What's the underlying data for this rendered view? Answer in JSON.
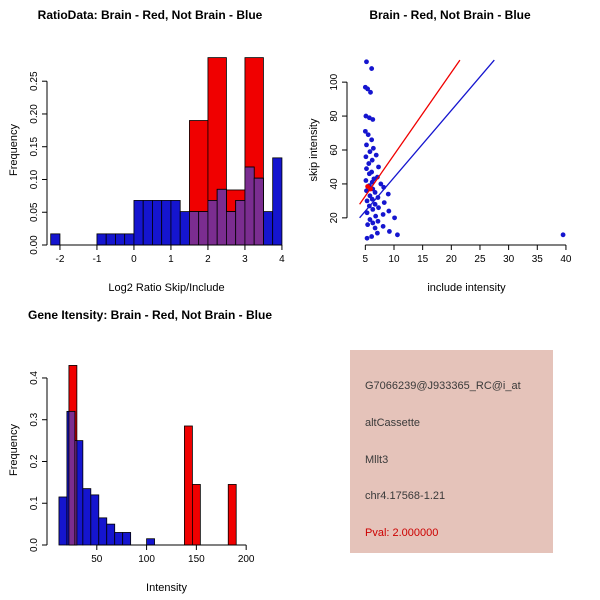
{
  "page": {
    "background": "#ffffff"
  },
  "chart_data": [
    {
      "type": "histogram",
      "title": "RatioData: Brain - Red, Not Brain - Blue",
      "xlabel": "Log2 Ratio Skip/Include",
      "ylabel": "Frequency",
      "xlim": [
        -2.35,
        4.11
      ],
      "ylim": [
        0,
        0.29
      ],
      "grid": false,
      "xticks": {
        "values": [
          -2,
          -1,
          0,
          1,
          2,
          3,
          4
        ],
        "labels": [
          "-2",
          "-1",
          "0",
          "1",
          "2",
          "3",
          "4"
        ]
      },
      "yticks": {
        "values": [
          0,
          0.05,
          0.1,
          0.15,
          0.2,
          0.25
        ],
        "labels": [
          "0.00",
          "0.05",
          "0.10",
          "0.15",
          "0.20",
          "0.25"
        ]
      },
      "overlap_color": "#7b2d90",
      "series": [
        {
          "name": "Brain",
          "color": "#f00000",
          "bars": [
            [
              1.5,
              2.0,
              0.19
            ],
            [
              2.0,
              2.5,
              0.286
            ],
            [
              2.5,
              3.0,
              0.084
            ],
            [
              3.0,
              3.5,
              0.286
            ]
          ]
        },
        {
          "name": "Not Brain",
          "color": "#1515cf",
          "bars": [
            [
              -2.25,
              -2.0,
              0.017
            ],
            [
              -1.0,
              -0.75,
              0.017
            ],
            [
              -0.75,
              -0.5,
              0.017
            ],
            [
              -0.5,
              -0.25,
              0.017
            ],
            [
              -0.25,
              0,
              0.017
            ],
            [
              0,
              0.25,
              0.068
            ],
            [
              0.25,
              0.5,
              0.068
            ],
            [
              0.5,
              0.75,
              0.068
            ],
            [
              0.75,
              1.0,
              0.068
            ],
            [
              1.0,
              1.25,
              0.068
            ],
            [
              1.25,
              1.5,
              0.051
            ],
            [
              1.5,
              1.75,
              0.051
            ],
            [
              1.75,
              2.0,
              0.051
            ],
            [
              2.0,
              2.25,
              0.068
            ],
            [
              2.25,
              2.5,
              0.085
            ],
            [
              2.5,
              2.75,
              0.051
            ],
            [
              2.75,
              3.0,
              0.068
            ],
            [
              3.0,
              3.25,
              0.119
            ],
            [
              3.25,
              3.5,
              0.102
            ],
            [
              3.5,
              3.75,
              0.051
            ],
            [
              3.75,
              4.0,
              0.133
            ]
          ]
        }
      ]
    },
    {
      "type": "scatter",
      "title": "Brain - Red, Not Brain - Blue",
      "xlabel": "include intensity",
      "ylabel": "skip intensity",
      "xlim": [
        1.8,
        43.5
      ],
      "ylim": [
        4,
        116
      ],
      "grid": false,
      "xticks": {
        "values": [
          5,
          10,
          15,
          20,
          25,
          30,
          35,
          40
        ],
        "labels": [
          "5",
          "10",
          "15",
          "20",
          "25",
          "30",
          "35",
          "40"
        ]
      },
      "yticks": {
        "values": [
          20,
          40,
          60,
          80,
          100
        ],
        "labels": [
          "20",
          "40",
          "60",
          "80",
          "100"
        ]
      },
      "series": [
        {
          "name": "Not Brain",
          "color": "#1515cf",
          "points": [
            [
              5.2,
              112
            ],
            [
              6.1,
              108
            ],
            [
              5.0,
              97
            ],
            [
              5.4,
              96
            ],
            [
              5.9,
              94
            ],
            [
              5.1,
              80
            ],
            [
              5.7,
              79
            ],
            [
              6.3,
              78
            ],
            [
              5.0,
              71
            ],
            [
              5.5,
              69
            ],
            [
              6.1,
              66
            ],
            [
              5.2,
              63
            ],
            [
              6.4,
              61
            ],
            [
              5.8,
              59
            ],
            [
              6.9,
              57
            ],
            [
              5.1,
              56
            ],
            [
              6.2,
              54
            ],
            [
              5.6,
              52
            ],
            [
              7.3,
              50
            ],
            [
              5.2,
              49
            ],
            [
              6.1,
              47
            ],
            [
              5.7,
              46
            ],
            [
              7.1,
              44
            ],
            [
              6.5,
              43
            ],
            [
              5.1,
              42
            ],
            [
              6.2,
              41
            ],
            [
              7.7,
              40
            ],
            [
              5.7,
              39
            ],
            [
              8.2,
              38
            ],
            [
              6.3,
              37
            ],
            [
              5.2,
              36
            ],
            [
              6.7,
              35
            ],
            [
              9.0,
              34
            ],
            [
              5.8,
              33
            ],
            [
              7.2,
              32
            ],
            [
              6.2,
              31
            ],
            [
              5.3,
              30
            ],
            [
              8.3,
              29
            ],
            [
              6.7,
              28
            ],
            [
              5.7,
              27
            ],
            [
              7.3,
              26
            ],
            [
              6.3,
              25
            ],
            [
              9.1,
              24
            ],
            [
              5.3,
              23
            ],
            [
              8.1,
              22
            ],
            [
              6.8,
              21
            ],
            [
              10.1,
              20
            ],
            [
              5.8,
              19
            ],
            [
              7.2,
              18
            ],
            [
              6.3,
              17
            ],
            [
              5.4,
              16
            ],
            [
              8.1,
              15
            ],
            [
              6.7,
              14
            ],
            [
              9.2,
              12
            ],
            [
              7.1,
              11
            ],
            [
              10.6,
              10
            ],
            [
              39.5,
              10
            ],
            [
              6.1,
              9
            ],
            [
              5.3,
              8
            ]
          ]
        },
        {
          "name": "Brain",
          "color": "#f00000",
          "points": [
            [
              5.4,
              38.5
            ],
            [
              5.9,
              37.0
            ]
          ]
        }
      ],
      "lines": [
        {
          "name": "Brain fit",
          "color": "#f00000",
          "x1": 4,
          "y1": 28,
          "x2": 21.5,
          "y2": 113
        },
        {
          "name": "Not Brain fit",
          "color": "#1515cf",
          "x1": 4,
          "y1": 20,
          "x2": 27.5,
          "y2": 113
        }
      ]
    },
    {
      "type": "histogram",
      "title": "Gene Itensity: Brain - Red, Not Brain - Blue",
      "xlabel": "Intensity",
      "ylabel": "Frequency",
      "xlim": [
        0,
        240
      ],
      "ylim": [
        0,
        0.455
      ],
      "grid": false,
      "xticks": {
        "values": [
          50,
          100,
          150,
          200
        ],
        "labels": [
          "50",
          "100",
          "150",
          "200"
        ]
      },
      "yticks": {
        "values": [
          0,
          0.1,
          0.2,
          0.3,
          0.4
        ],
        "labels": [
          "0.0",
          "0.1",
          "0.2",
          "0.3",
          "0.4"
        ]
      },
      "overlap_color": "#7b2d90",
      "series": [
        {
          "name": "Brain",
          "color": "#f00000",
          "bars": [
            [
              22,
              30,
              0.43
            ],
            [
              138,
              146,
              0.285
            ],
            [
              146,
              154,
              0.145
            ],
            [
              182,
              190,
              0.145
            ]
          ]
        },
        {
          "name": "Not Brain",
          "color": "#1515cf",
          "bars": [
            [
              12,
              20,
              0.115
            ],
            [
              20,
              28,
              0.32
            ],
            [
              28,
              36,
              0.25
            ],
            [
              36,
              44,
              0.135
            ],
            [
              44,
              52,
              0.12
            ],
            [
              52,
              60,
              0.065
            ],
            [
              60,
              68,
              0.05
            ],
            [
              68,
              76,
              0.03
            ],
            [
              76,
              84,
              0.03
            ],
            [
              100,
              108,
              0.015
            ]
          ]
        }
      ]
    }
  ],
  "info_panel": {
    "background": "#e5c3ba",
    "lines": [
      {
        "text": "G7066239@J933365_RC@i_at",
        "color": "#3a3a3a"
      },
      {
        "text": "altCassette",
        "color": "#3a3a3a"
      },
      {
        "text": "Mllt3",
        "color": "#3a3a3a"
      },
      {
        "text": "chr4.17568-1.21",
        "color": "#3a3a3a"
      },
      {
        "text": "Pval: 2.000000",
        "color": "#cc0000"
      }
    ]
  }
}
